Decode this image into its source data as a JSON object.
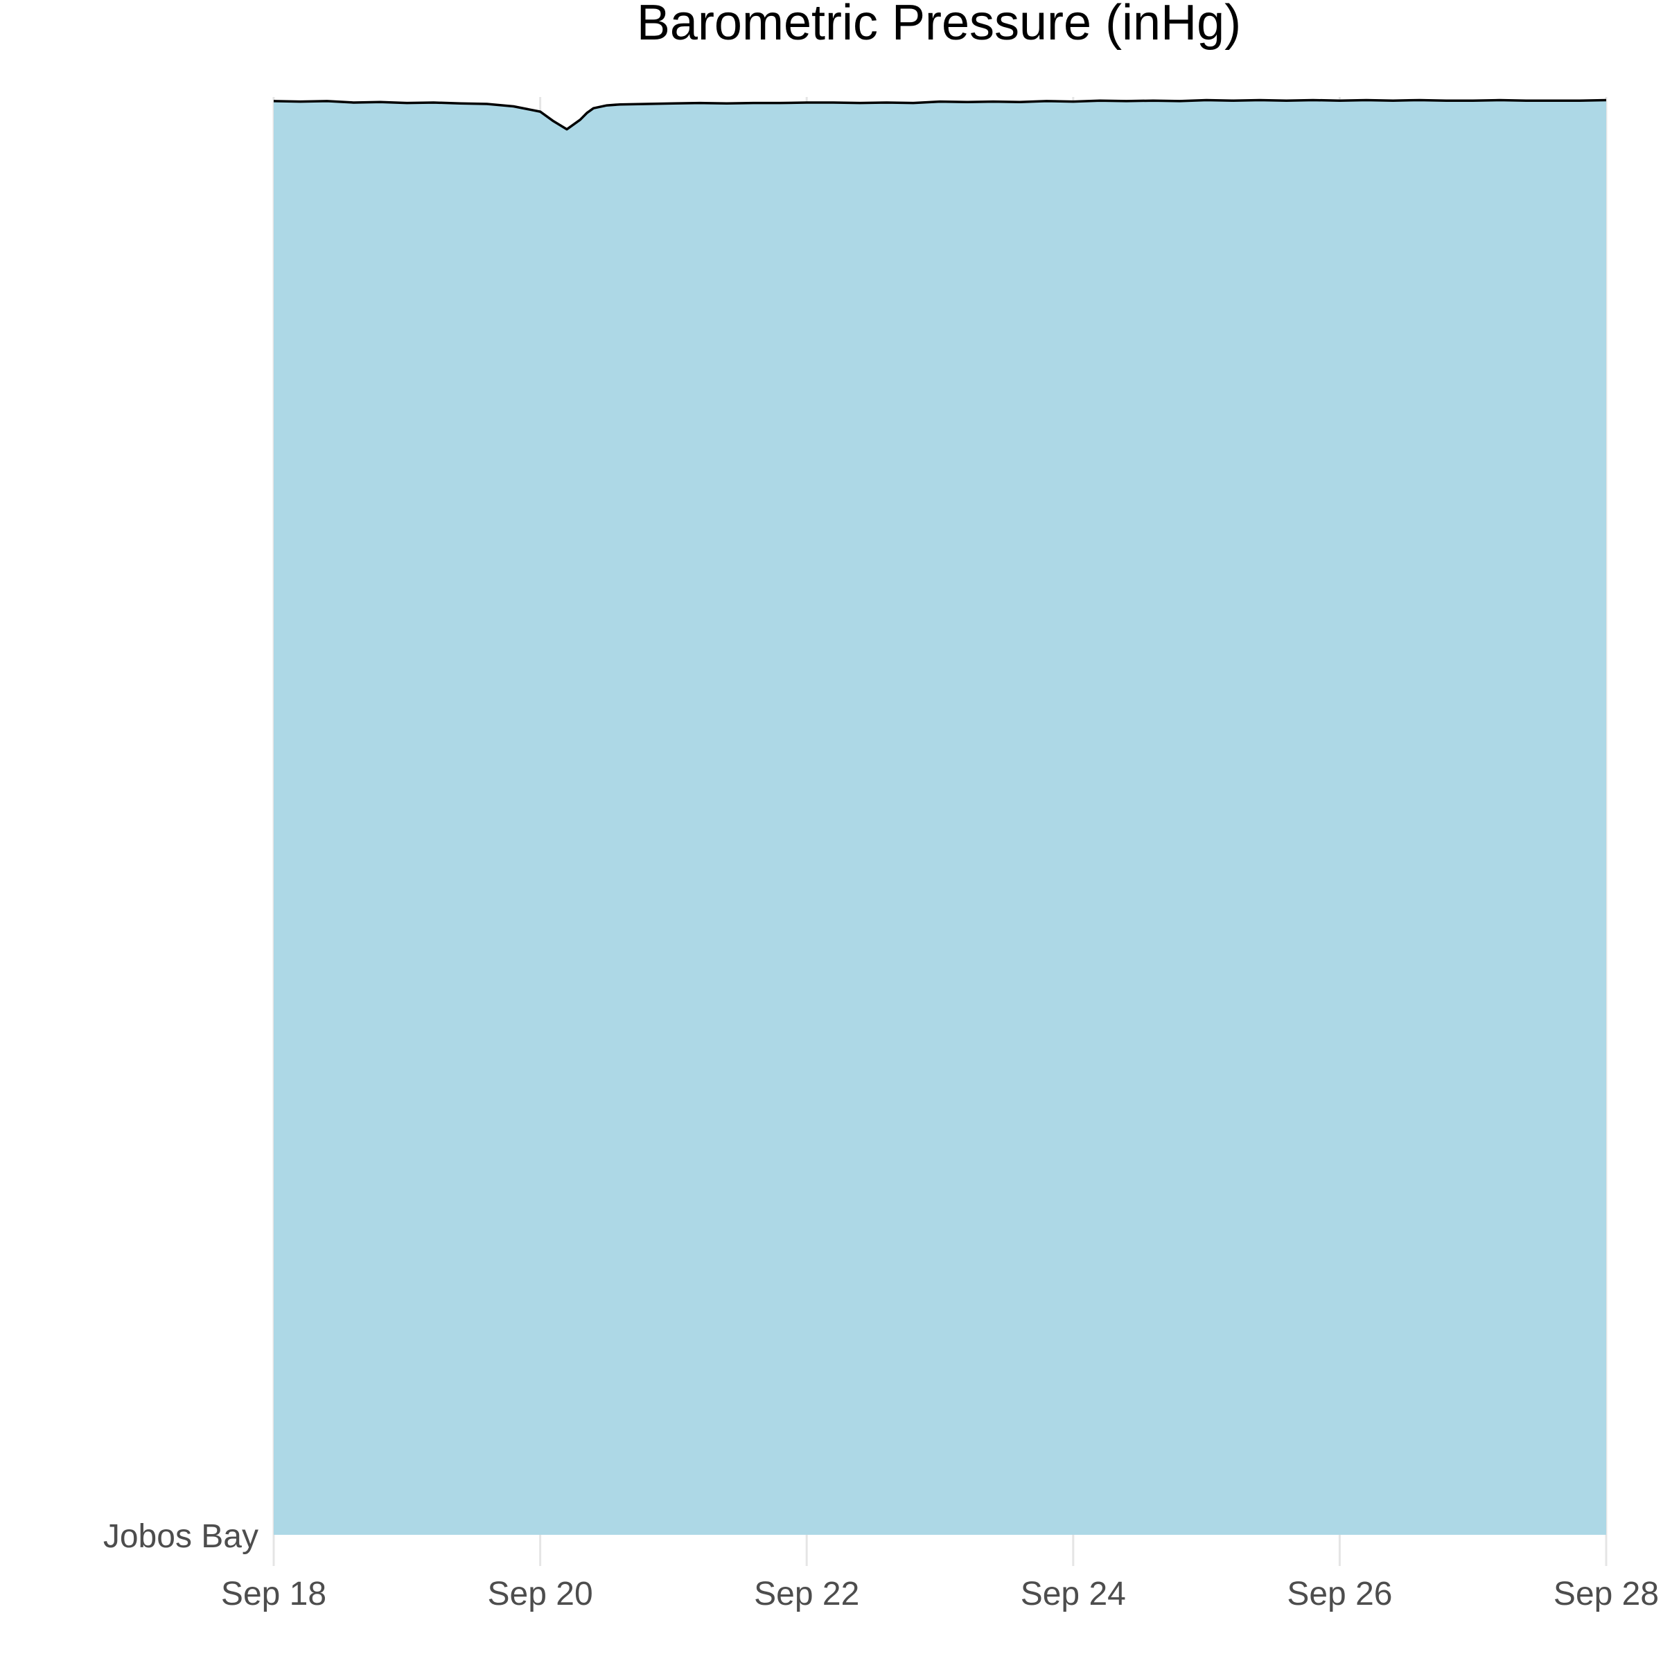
{
  "chart_data": {
    "type": "area",
    "title": "Barometric Pressure (inHg)",
    "xlabel": "",
    "ylabel": "",
    "series_label": "Jobos Bay",
    "x_ticks": [
      "Sep 18",
      "Sep 20",
      "Sep 22",
      "Sep 24",
      "Sep 26",
      "Sep 28"
    ],
    "x_range_days": [
      18,
      28
    ],
    "ylim": [
      0,
      30.2
    ],
    "colors": {
      "fill": "#add8e6",
      "line": "#000000",
      "grid": "#e5e5e5"
    },
    "series": [
      {
        "name": "Jobos Bay",
        "x_days": [
          18.0,
          18.2,
          18.4,
          18.6,
          18.8,
          19.0,
          19.2,
          19.4,
          19.6,
          19.8,
          20.0,
          20.1,
          20.2,
          20.3,
          20.35,
          20.4,
          20.5,
          20.6,
          20.8,
          21.0,
          21.2,
          21.4,
          21.6,
          21.8,
          22.0,
          22.2,
          22.4,
          22.6,
          22.8,
          23.0,
          23.2,
          23.4,
          23.6,
          23.8,
          24.0,
          24.2,
          24.4,
          24.6,
          24.8,
          25.0,
          25.2,
          25.4,
          25.6,
          25.8,
          26.0,
          26.2,
          26.4,
          26.6,
          26.8,
          27.0,
          27.2,
          27.4,
          27.6,
          27.8,
          28.0
        ],
        "values": [
          29.97,
          29.96,
          29.97,
          29.94,
          29.95,
          29.93,
          29.94,
          29.92,
          29.91,
          29.86,
          29.75,
          29.55,
          29.38,
          29.58,
          29.72,
          29.82,
          29.88,
          29.9,
          29.91,
          29.92,
          29.93,
          29.92,
          29.93,
          29.93,
          29.94,
          29.94,
          29.93,
          29.94,
          29.93,
          29.96,
          29.95,
          29.96,
          29.95,
          29.97,
          29.96,
          29.98,
          29.97,
          29.98,
          29.97,
          29.99,
          29.98,
          29.99,
          29.98,
          29.99,
          29.98,
          29.99,
          29.98,
          29.99,
          29.98,
          29.98,
          29.99,
          29.98,
          29.98,
          29.98,
          29.99
        ]
      }
    ]
  }
}
